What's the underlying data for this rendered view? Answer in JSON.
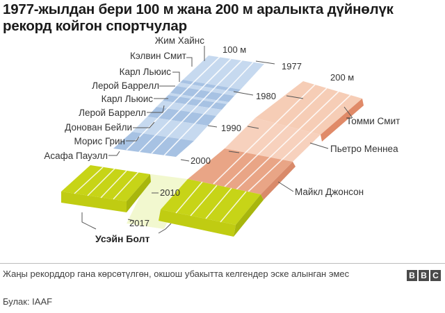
{
  "title": "1977-жылдан бери 100 м жана 200 м аралыкта дүйнөлүк рекорд койгон спортчулар",
  "events": {
    "m100": "100 м",
    "m200": "200 м"
  },
  "years": [
    "1977",
    "1980",
    "1990",
    "2000",
    "2010",
    "2017"
  ],
  "holders_100m": [
    "Жим Хайнс",
    "Кэлвин Смит",
    "Карл Льюис",
    "Лерой Баррелл",
    "Карл Льюис",
    "Лерой Баррелл",
    "Донован Бейли",
    "Морис Грин",
    "Асафа Пауэлл"
  ],
  "holders_200m": [
    "Томми Смит",
    "Пьетро Меннеа",
    "Майкл Джонсон"
  ],
  "shared_holder": "Усэйн Болт",
  "note": "Жаңы рекорддор гана көрсөтүлгөн, окшош убакытта келгендер эске алынган эмес",
  "source": "Булак: IAAF",
  "logo": [
    "B",
    "B",
    "C"
  ],
  "colors": {
    "blue_light": "#c6d9ef",
    "blue_dark": "#a7c2e3",
    "salmon_light": "#f6cdb6",
    "salmon_dark": "#e9a586",
    "salmon_edge": "#e08a68",
    "green": "#c7d417",
    "green_edge": "#a8b60d",
    "connector": "#f2f8cf"
  }
}
